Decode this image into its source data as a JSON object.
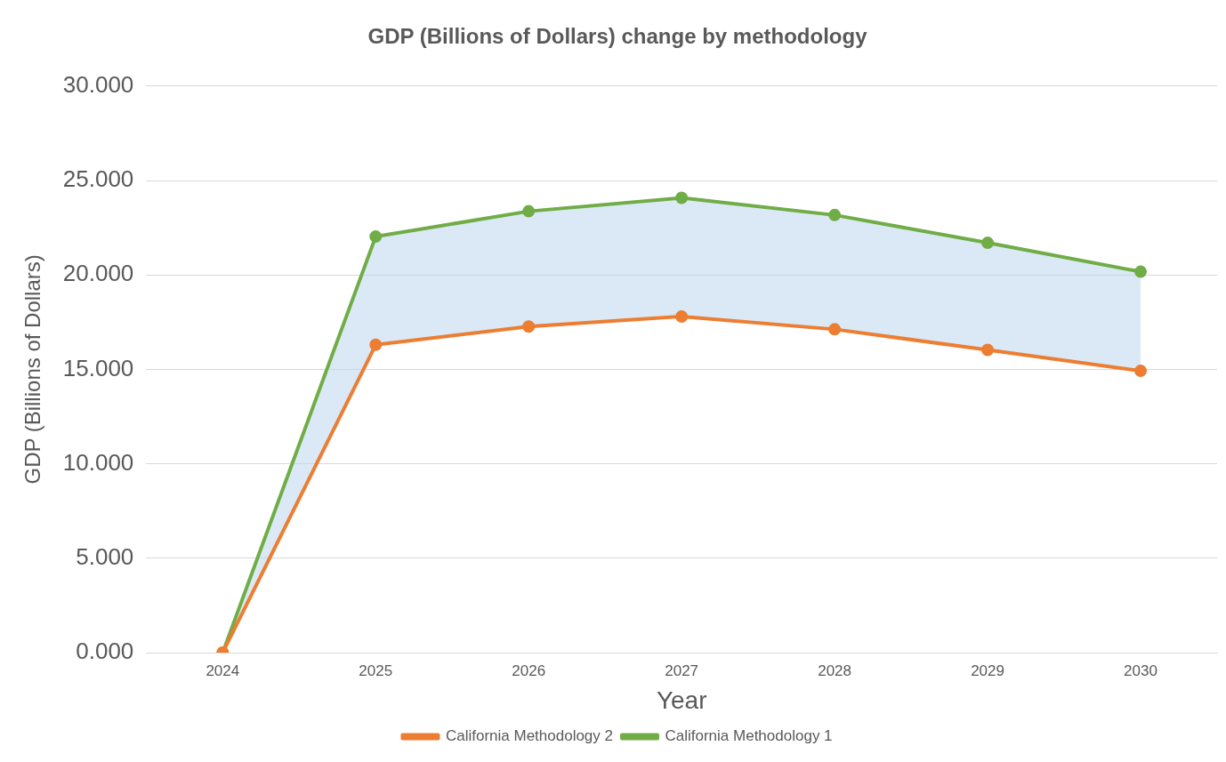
{
  "chart_data": {
    "type": "line",
    "title": "GDP (Billions of Dollars) change by methodology",
    "xlabel": "Year",
    "ylabel": "GDP (Billions of Dollars)",
    "categories": [
      "2024",
      "2025",
      "2026",
      "2027",
      "2028",
      "2029",
      "2030"
    ],
    "series": [
      {
        "name": "California Methodology 2",
        "color": "#ed7d31",
        "values": [
          0,
          16.3,
          17.27,
          17.8,
          17.12,
          16.03,
          14.92
        ]
      },
      {
        "name": "California Methodology 1",
        "color": "#70ad47",
        "values": [
          0,
          22.03,
          23.37,
          24.08,
          23.17,
          21.7,
          20.17
        ],
        "lower": [
          0,
          16.3,
          17.27,
          17.8,
          17.12,
          16.03,
          14.92
        ],
        "upper": [
          0,
          22.03,
          23.37,
          24.08,
          23.17,
          21.7,
          20.17
        ]
      }
    ],
    "ylim": [
      0,
      30
    ],
    "yticks": [
      {
        "value": 0,
        "label": "0.000"
      },
      {
        "value": 5,
        "label": "5.000"
      },
      {
        "value": 10,
        "label": "10.000"
      },
      {
        "value": 15,
        "label": "15.000"
      },
      {
        "value": 20,
        "label": "20.000"
      },
      {
        "value": 25,
        "label": "25.000"
      },
      {
        "value": 30,
        "label": "30.000"
      }
    ],
    "grid": "y",
    "legend": "bottom",
    "marker": "circle",
    "line_style": "solid"
  }
}
